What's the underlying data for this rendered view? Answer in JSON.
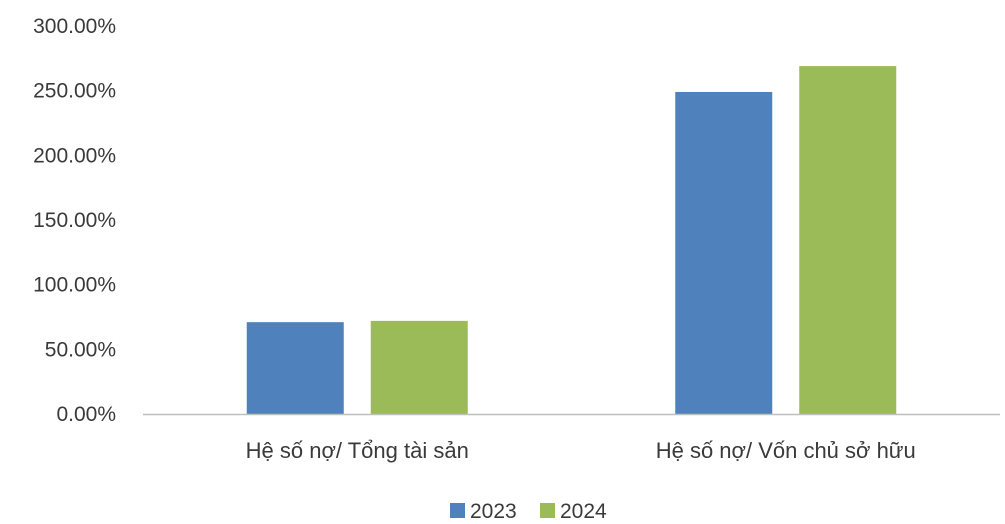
{
  "chart_data": {
    "type": "bar",
    "categories": [
      "Hệ số nợ/ Tổng tài sản",
      "Hệ số nợ/ Vốn chủ sở hữu"
    ],
    "series": [
      {
        "name": "2023",
        "values": [
          71,
          249
        ]
      },
      {
        "name": "2024",
        "values": [
          72,
          269
        ]
      }
    ],
    "ylim": [
      0,
      300
    ],
    "ytick_values": [
      0,
      50,
      100,
      150,
      200,
      250,
      300
    ],
    "yticks": [
      "0.00%",
      "50.00%",
      "100.00%",
      "150.00%",
      "200.00%",
      "250.00%",
      "300.00%"
    ],
    "legend": {
      "position": "bottom"
    },
    "grid": false,
    "colors": {
      "2023": "#4f81bd",
      "2024": "#9bbb59",
      "axis": "#bfbfbf"
    }
  }
}
